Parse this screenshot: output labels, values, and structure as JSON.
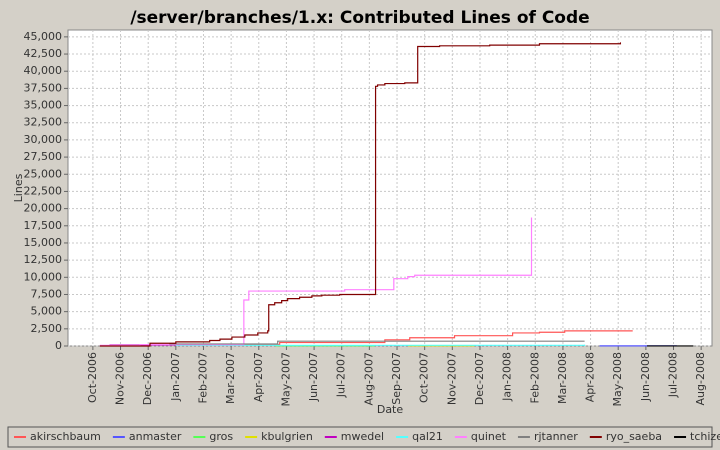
{
  "chart_data": {
    "type": "line",
    "step": true,
    "title": "/server/branches/1.x: Contributed Lines of Code",
    "x_label": "Date",
    "y_label": "Lines",
    "xlim": [
      2006.675,
      2008.616
    ],
    "ylim": [
      0,
      46000
    ],
    "grid": true,
    "legend": "bottom",
    "xticks": [
      {
        "value": 2006.75,
        "label": "Oct-2006"
      },
      {
        "value": 2006.8333,
        "label": "Nov-2006"
      },
      {
        "value": 2006.9167,
        "label": "Dec-2006"
      },
      {
        "value": 2007.0,
        "label": "Jan-2007"
      },
      {
        "value": 2007.0833,
        "label": "Feb-2007"
      },
      {
        "value": 2007.1667,
        "label": "Mar-2007"
      },
      {
        "value": 2007.25,
        "label": "Apr-2007"
      },
      {
        "value": 2007.3333,
        "label": "May-2007"
      },
      {
        "value": 2007.4167,
        "label": "Jun-2007"
      },
      {
        "value": 2007.5,
        "label": "Jul-2007"
      },
      {
        "value": 2007.5833,
        "label": "Aug-2007"
      },
      {
        "value": 2007.6667,
        "label": "Sep-2007"
      },
      {
        "value": 2007.75,
        "label": "Oct-2007"
      },
      {
        "value": 2007.8333,
        "label": "Nov-2007"
      },
      {
        "value": 2007.9167,
        "label": "Dec-2007"
      },
      {
        "value": 2008.0,
        "label": "Jan-2008"
      },
      {
        "value": 2008.0833,
        "label": "Feb-2008"
      },
      {
        "value": 2008.1667,
        "label": "Mar-2008"
      },
      {
        "value": 2008.25,
        "label": "Apr-2008"
      },
      {
        "value": 2008.3333,
        "label": "May-2008"
      },
      {
        "value": 2008.4167,
        "label": "Jun-2008"
      },
      {
        "value": 2008.5,
        "label": "Jul-2008"
      },
      {
        "value": 2008.5833,
        "label": "Aug-2008"
      }
    ],
    "yticks": [
      0,
      {
        "value": 2500,
        "label": "2,500"
      },
      {
        "value": 5000,
        "label": "5,000"
      },
      {
        "value": 7500,
        "label": "7,500"
      },
      {
        "value": 10000,
        "label": "10,000"
      },
      {
        "value": 12500,
        "label": "12,500"
      },
      {
        "value": 15000,
        "label": "15,000"
      },
      {
        "value": 17500,
        "label": "17,500"
      },
      {
        "value": 20000,
        "label": "20,000"
      },
      {
        "value": 22500,
        "label": "22,500"
      },
      {
        "value": 25000,
        "label": "25,000"
      },
      {
        "value": 27500,
        "label": "27,500"
      },
      {
        "value": 30000,
        "label": "30,000"
      },
      {
        "value": 32500,
        "label": "32,500"
      },
      {
        "value": 35000,
        "label": "35,000"
      },
      {
        "value": 37500,
        "label": "37,500"
      },
      {
        "value": 40000,
        "label": "40,000"
      },
      {
        "value": 42500,
        "label": "42,500"
      },
      {
        "value": 45000,
        "label": "45,000"
      }
    ],
    "series": [
      {
        "name": "akirschbaum",
        "color": "#ff5555",
        "x": [
          2006.922,
          2007.313,
          2007.63,
          2007.705,
          2007.84,
          2008.015,
          2008.096,
          2008.172,
          2008.377
        ],
        "values": [
          200,
          500,
          900,
          1200,
          1500,
          1900,
          2000,
          2200,
          2200
        ]
      },
      {
        "name": "anmaster",
        "color": "#5555ff",
        "x": [
          2008.277,
          2008.51
        ],
        "values": [
          20,
          20
        ]
      },
      {
        "name": "gros",
        "color": "#55ff55",
        "x": [
          2007.3,
          2007.6
        ],
        "values": [
          40,
          40
        ]
      },
      {
        "name": "kbulgrien",
        "color": "#e0e000",
        "x": [
          2007.7,
          2007.9
        ],
        "values": [
          30,
          30
        ]
      },
      {
        "name": "mwedel",
        "color": "#c000c0",
        "x": [
          2006.8,
          2007.0
        ],
        "values": [
          150,
          300
        ]
      },
      {
        "name": "qal21",
        "color": "#55ffff",
        "x": [
          2007.0,
          2008.232
        ],
        "values": [
          100,
          200
        ]
      },
      {
        "name": "quinet",
        "color": "#ff80ff",
        "x": [
          2006.771,
          2006.892,
          2007.205,
          2007.22,
          2007.509,
          2007.657,
          2007.699,
          2007.72,
          2008.072
        ],
        "values": [
          100,
          200,
          6700,
          8000,
          8200,
          9800,
          10100,
          10300,
          18700
        ]
      },
      {
        "name": "rjtanner",
        "color": "#808080",
        "x": [
          2006.98,
          2007.307,
          2008.232
        ],
        "values": [
          300,
          700,
          700
        ]
      },
      {
        "name": "ryo_saeba",
        "color": "#800000",
        "x": [
          2006.771,
          2006.922,
          2007.0,
          2007.102,
          2007.133,
          2007.169,
          2007.208,
          2007.247,
          2007.277,
          2007.28,
          2007.298,
          2007.319,
          2007.337,
          2007.373,
          2007.41,
          2007.44,
          2007.494,
          2007.602,
          2007.608,
          2007.63,
          2007.69,
          2007.729,
          2007.795,
          2007.946,
          2008.096,
          2008.34
        ],
        "values": [
          0,
          400,
          600,
          800,
          1000,
          1300,
          1600,
          1900,
          2200,
          6000,
          6300,
          6600,
          6900,
          7100,
          7300,
          7400,
          7500,
          37800,
          38000,
          38200,
          38300,
          43600,
          43700,
          43800,
          44000,
          44200
        ]
      },
      {
        "name": "tchize",
        "color": "#000000",
        "x": [
          2008.42,
          2008.56
        ],
        "values": [
          10,
          10
        ]
      }
    ]
  }
}
